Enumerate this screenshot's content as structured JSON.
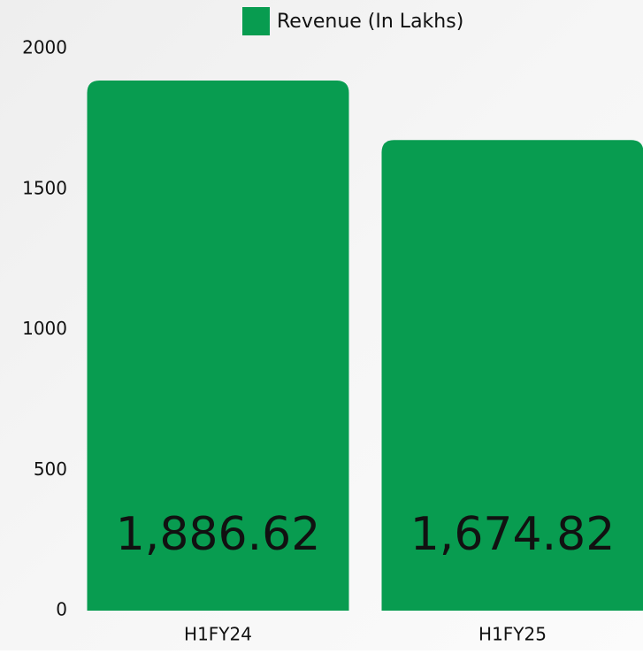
{
  "chart_data": {
    "type": "bar",
    "legend": "Revenue (In Lakhs)",
    "categories": [
      "H1FY24",
      "H1FY25"
    ],
    "values": [
      1886.62,
      1674.82
    ],
    "value_labels": [
      "1,886.62",
      "1,674.82"
    ],
    "color": "#089c50",
    "ylim": [
      0,
      2000
    ],
    "yticks": [
      0,
      500,
      1000,
      1500,
      2000
    ],
    "grid": false
  }
}
